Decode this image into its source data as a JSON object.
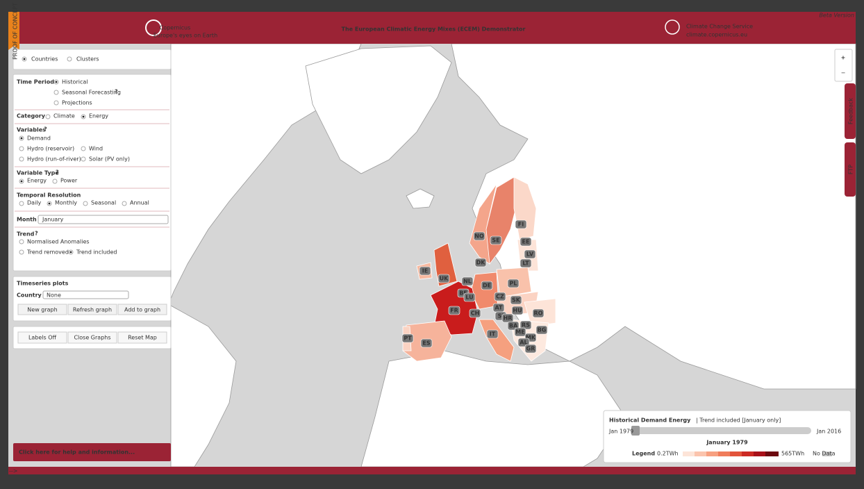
{
  "header": {
    "badge": "PROOF OF CONCEPT",
    "logo": "Copernicus",
    "logo_tagline": "Europe's eyes on Earth",
    "title": "The European Climatic Energy Mixes (ECEM) Demonstrator",
    "service_name": "Climate Change Service",
    "service_url": "climate.copernicus.eu",
    "beta": "Beta Version"
  },
  "sidebar": {
    "mode": [
      "Countries",
      "Clusters"
    ],
    "help_mark": "?",
    "time_period": {
      "label": "Time Period",
      "options": [
        "Historical",
        "Seasonal Forecasting",
        "Projections"
      ]
    },
    "category": {
      "label": "Category",
      "options": [
        "Climate",
        "Energy"
      ]
    },
    "variables": {
      "label": "Variables",
      "options": [
        "Demand",
        "Hydro (reservoir)",
        "Wind",
        "Hydro (run-of-river)",
        "Solar (PV only)"
      ]
    },
    "variable_type": {
      "label": "Variable Type",
      "options": [
        "Energy",
        "Power"
      ]
    },
    "temporal_resolution": {
      "label": "Temporal Resolution",
      "options": [
        "Daily",
        "Monthly",
        "Seasonal",
        "Annual"
      ]
    },
    "month": {
      "label": "Month",
      "selected": "January"
    },
    "trend": {
      "label": "Trend",
      "options": [
        "Normalised Anomalies",
        "Trend removed",
        "Trend included"
      ]
    },
    "timeseries": {
      "title": "Timeseries plots",
      "country_label": "Country",
      "country_selected": "None",
      "buttons": [
        "New graph",
        "Refresh graph",
        "Add to graph"
      ]
    },
    "map_buttons": [
      "Labels Off",
      "Close Graphs",
      "Reset Map"
    ],
    "help": "Click here for help and information..."
  },
  "map": {
    "zoom": [
      "+",
      "−"
    ],
    "tabs": [
      "Feedback",
      "FTP"
    ],
    "labels": [
      "FI",
      "NO",
      "SE",
      "EE",
      "LV",
      "LT",
      "DK",
      "IE",
      "UK",
      "NL",
      "BE",
      "LU",
      "DE",
      "PL",
      "CZ",
      "SK",
      "FR",
      "CH",
      "AT",
      "SI",
      "HR",
      "HU",
      "RO",
      "BA",
      "RS",
      "ME",
      "MK",
      "AL",
      "GR",
      "BG",
      "IT",
      "ES",
      "PT"
    ]
  },
  "legend_panel": {
    "title": "Historical Demand Energy",
    "subtitle": "| Trend included [January only]",
    "start": "Jan 1979",
    "end": "Jan 2016",
    "current": "January 1979",
    "legend": "Legend",
    "min": "0.2TWh",
    "max": "565TWh",
    "no_data": "No Data"
  },
  "footer": {
    "arrow": "-->"
  }
}
